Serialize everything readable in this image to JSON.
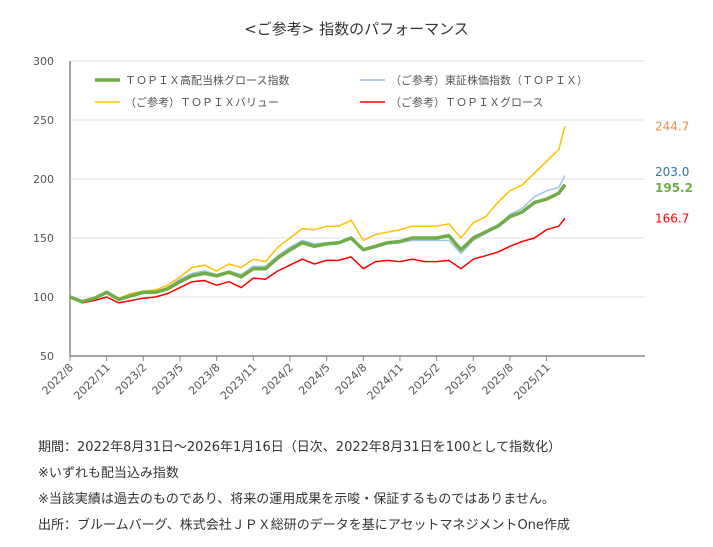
{
  "chart_data": {
    "type": "line",
    "title": "<ご参考> 指数のパフォーマンス",
    "xlabel": "",
    "ylabel": "",
    "ylim": [
      50,
      300
    ],
    "yticks": [
      "50",
      "100",
      "150",
      "200",
      "250",
      "300"
    ],
    "xticks": [
      "2022/8",
      "2022/11",
      "2023/2",
      "2023/5",
      "2023/8",
      "2023/11",
      "2024/2",
      "2024/5",
      "2024/8",
      "2024/11",
      "2025/2",
      "2025/5",
      "2025/8",
      "2025/11"
    ],
    "grid": true,
    "legend_position": "top",
    "dates": [
      "2022/8",
      "2022/9",
      "2022/10",
      "2022/11",
      "2022/12",
      "2023/1",
      "2023/2",
      "2023/3",
      "2023/4",
      "2023/5",
      "2023/6",
      "2023/7",
      "2023/8",
      "2023/9",
      "2023/10",
      "2023/11",
      "2023/12",
      "2024/1",
      "2024/2",
      "2024/3",
      "2024/4",
      "2024/5",
      "2024/6",
      "2024/7",
      "2024/8",
      "2024/9",
      "2024/10",
      "2024/11",
      "2024/12",
      "2025/1",
      "2025/2",
      "2025/3",
      "2025/4",
      "2025/5",
      "2025/6",
      "2025/7",
      "2025/8",
      "2025/9",
      "2025/10",
      "2025/11",
      "2025/12",
      "2026/1/16"
    ],
    "series": [
      {
        "name": "ＴＯＰＩＸ高配当株グロース指数",
        "color": "#70ad47",
        "end_label": "195.2",
        "values": [
          100,
          96,
          99,
          104,
          98,
          101,
          104,
          104,
          107,
          113,
          118,
          120,
          118,
          121,
          117,
          124,
          124,
          133,
          140,
          146,
          143,
          145,
          146,
          150,
          140,
          143,
          146,
          147,
          150,
          150,
          150,
          152,
          140,
          150,
          155,
          160,
          168,
          172,
          180,
          183,
          188,
          195.2
        ]
      },
      {
        "name": "（ご参考）東証株価指数（ＴＯＰＩＸ）",
        "color": "#9dc3e6",
        "label_color": "#2e75b6",
        "end_label": "203.0",
        "values": [
          100,
          96,
          99,
          104,
          98,
          101,
          104,
          104,
          108,
          115,
          120,
          122,
          119,
          122,
          119,
          126,
          126,
          135,
          142,
          148,
          145,
          146,
          146,
          150,
          140,
          142,
          145,
          146,
          148,
          148,
          148,
          148,
          137,
          148,
          154,
          160,
          170,
          175,
          185,
          190,
          193,
          203.0
        ]
      },
      {
        "name": "（ご参考）ＴＯＰＩＸバリュー",
        "color": "#ffc000",
        "label_color": "#f4894b",
        "end_label": "244.7",
        "values": [
          100,
          96,
          99,
          104,
          99,
          103,
          105,
          106,
          110,
          117,
          125,
          127,
          122,
          128,
          125,
          132,
          130,
          142,
          150,
          158,
          157,
          160,
          160,
          165,
          148,
          153,
          155,
          157,
          160,
          160,
          160,
          162,
          150,
          163,
          168,
          180,
          190,
          195,
          205,
          215,
          225,
          244.7
        ]
      },
      {
        "name": "（ご参考）ＴＯＰＩＸグロース",
        "color": "#ff0000",
        "label_color": "#ff0000",
        "end_label": "166.7",
        "values": [
          100,
          95,
          97,
          100,
          95,
          97,
          99,
          100,
          103,
          108,
          113,
          114,
          110,
          113,
          108,
          116,
          115,
          122,
          127,
          132,
          128,
          131,
          131,
          134,
          124,
          130,
          131,
          130,
          132,
          130,
          130,
          131,
          124,
          132,
          135,
          138,
          143,
          147,
          150,
          157,
          160,
          166.7
        ]
      }
    ]
  },
  "notes": [
    "期間：2022年8月31日～2026年1月16日（日次、2022年8月31日を100として指数化）",
    "※いずれも配当込み指数",
    "※当該実績は過去のものであり、将来の運用成果を示唆・保証するものではありません。",
    "出所：ブルームバーグ、株式会社ＪＰＸ総研のデータを基にアセットマネジメントOne作成"
  ]
}
